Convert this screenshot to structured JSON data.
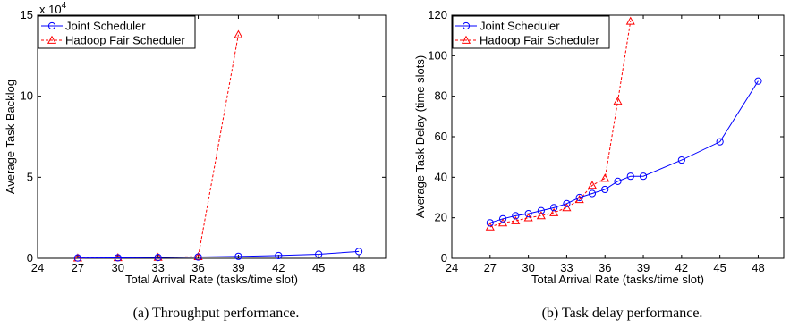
{
  "chart_data": [
    {
      "type": "line",
      "caption": "(a) Throughput performance.",
      "xlabel": "Total Arrival Rate (tasks/time slot)",
      "ylabel": "Average Task Backlog",
      "y_multiplier": "x 10",
      "y_multiplier_exp": "4",
      "xlim": [
        24,
        50
      ],
      "ylim": [
        0,
        15
      ],
      "xticks": [
        24,
        27,
        30,
        33,
        36,
        39,
        42,
        45,
        48
      ],
      "yticks": [
        0,
        5,
        10,
        15
      ],
      "legend_position": "top-left",
      "series": [
        {
          "name": "Joint Scheduler",
          "color": "#0000ff",
          "marker": "circle",
          "dash": "solid",
          "x": [
            27,
            30,
            33,
            36,
            39,
            42,
            45,
            48
          ],
          "y": [
            0.02,
            0.03,
            0.05,
            0.08,
            0.12,
            0.17,
            0.25,
            0.42
          ]
        },
        {
          "name": "Hadoop Fair Scheduler",
          "color": "#ff0000",
          "marker": "triangle",
          "dash": "dashed",
          "x": [
            27,
            30,
            33,
            36,
            39
          ],
          "y": [
            0.02,
            0.04,
            0.06,
            0.1,
            13.8
          ]
        }
      ]
    },
    {
      "type": "line",
      "caption": "(b) Task delay performance.",
      "xlabel": "Total Arrival Rate (tasks/time slot)",
      "ylabel": "Average Task Delay (time slots)",
      "xlim": [
        24,
        50
      ],
      "ylim": [
        0,
        120
      ],
      "xticks": [
        24,
        27,
        30,
        33,
        36,
        39,
        42,
        45,
        48
      ],
      "yticks": [
        0,
        20,
        40,
        60,
        80,
        100,
        120
      ],
      "legend_position": "top-left",
      "series": [
        {
          "name": "Joint Scheduler",
          "color": "#0000ff",
          "marker": "circle",
          "dash": "solid",
          "x": [
            27,
            28,
            29,
            30,
            31,
            32,
            33,
            34,
            35,
            36,
            37,
            38,
            39,
            42,
            45,
            48
          ],
          "y": [
            17.5,
            19.5,
            21,
            22,
            23.5,
            25,
            27,
            30,
            32,
            34,
            38,
            40.5,
            40.5,
            48.5,
            57.5,
            87.5
          ]
        },
        {
          "name": "Hadoop Fair Scheduler",
          "color": "#ff0000",
          "marker": "triangle",
          "dash": "dashed",
          "x": [
            27,
            28,
            29,
            30,
            31,
            32,
            33,
            34,
            35,
            36,
            37,
            38
          ],
          "y": [
            15.5,
            17.5,
            18.5,
            20,
            21,
            22.5,
            25,
            29,
            36,
            39.5,
            77.5,
            117
          ]
        }
      ]
    }
  ]
}
